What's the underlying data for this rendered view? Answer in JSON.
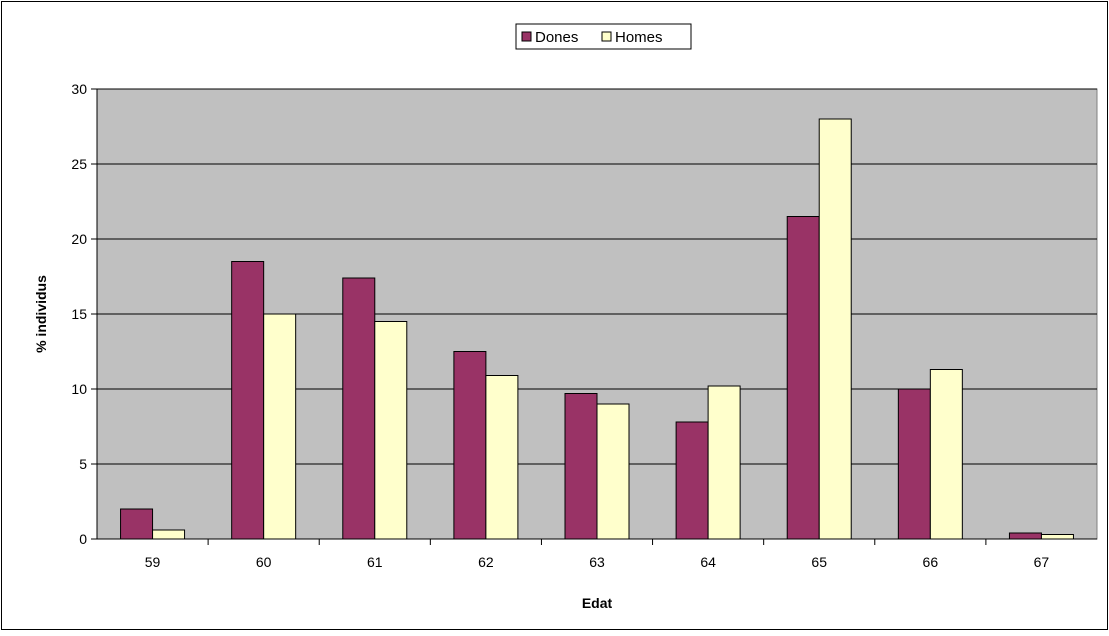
{
  "chart_data": {
    "type": "bar",
    "title": "",
    "xlabel": "Edat",
    "ylabel": "% individus",
    "categories": [
      "59",
      "60",
      "61",
      "62",
      "63",
      "64",
      "65",
      "66",
      "67"
    ],
    "ylim": [
      0,
      30
    ],
    "yticks": [
      0,
      5,
      10,
      15,
      20,
      25,
      30
    ],
    "grid": true,
    "legend_position": "top-center",
    "plot_background": "#c0c0c0",
    "series": [
      {
        "name": "Dones",
        "color": "#993366",
        "values": [
          2.0,
          18.5,
          17.4,
          12.5,
          9.7,
          7.8,
          21.5,
          10.0,
          0.4
        ]
      },
      {
        "name": "Homes",
        "color": "#ffffcc",
        "values": [
          0.6,
          15.0,
          14.5,
          10.9,
          9.0,
          10.2,
          28.0,
          11.3,
          0.3
        ]
      }
    ]
  }
}
